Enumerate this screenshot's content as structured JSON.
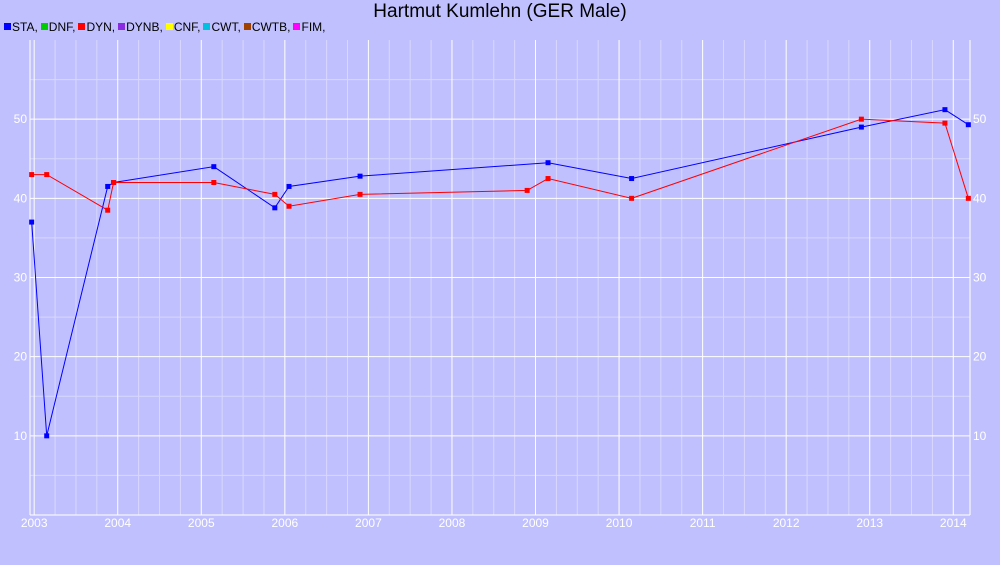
{
  "chart_data": {
    "type": "line",
    "title": "Hartmut Kumlehn (GER Male)",
    "xlabel": "",
    "ylabel": "",
    "xlim": [
      2002.95,
      2014.2
    ],
    "ylim": [
      0,
      60
    ],
    "x_ticks": [
      "2003",
      "2004",
      "2005",
      "2006",
      "2007",
      "2008",
      "2009",
      "2010",
      "2011",
      "2012",
      "2013",
      "2014"
    ],
    "y_ticks": [
      "10",
      "20",
      "30",
      "40",
      "50"
    ],
    "grid": true,
    "legend_position": "top-left",
    "legend": [
      {
        "label": "STA,",
        "color": "#0000ff"
      },
      {
        "label": "DNF,",
        "color": "#00cc00"
      },
      {
        "label": "DYN,",
        "color": "#ff0000"
      },
      {
        "label": "DYNB,",
        "color": "#8a2be2"
      },
      {
        "label": "CNF,",
        "color": "#ffff00"
      },
      {
        "label": "CWT,",
        "color": "#00c0e0"
      },
      {
        "label": "CWTB,",
        "color": "#a04000"
      },
      {
        "label": "FIM,",
        "color": "#ff00ff"
      }
    ],
    "series": [
      {
        "name": "STA",
        "color": "#0000ff",
        "points": [
          [
            2002.97,
            37
          ],
          [
            2003.15,
            10
          ],
          [
            2003.88,
            41.5
          ],
          [
            2003.95,
            42
          ],
          [
            2005.15,
            44
          ],
          [
            2005.88,
            38.8
          ],
          [
            2006.05,
            41.5
          ],
          [
            2006.9,
            42.8
          ],
          [
            2009.15,
            44.5
          ],
          [
            2010.15,
            42.5
          ],
          [
            2012.9,
            49
          ],
          [
            2013.9,
            51.2
          ],
          [
            2014.18,
            49.3
          ]
        ]
      },
      {
        "name": "DYN",
        "color": "#ff0000",
        "points": [
          [
            2002.97,
            43
          ],
          [
            2003.15,
            43
          ],
          [
            2003.88,
            38.5
          ],
          [
            2003.95,
            42
          ],
          [
            2005.15,
            42
          ],
          [
            2005.88,
            40.5
          ],
          [
            2006.05,
            39
          ],
          [
            2006.9,
            40.5
          ],
          [
            2008.9,
            41
          ],
          [
            2009.15,
            42.5
          ],
          [
            2010.15,
            40
          ],
          [
            2012.9,
            50
          ],
          [
            2013.9,
            49.5
          ],
          [
            2014.18,
            40
          ]
        ]
      }
    ]
  }
}
